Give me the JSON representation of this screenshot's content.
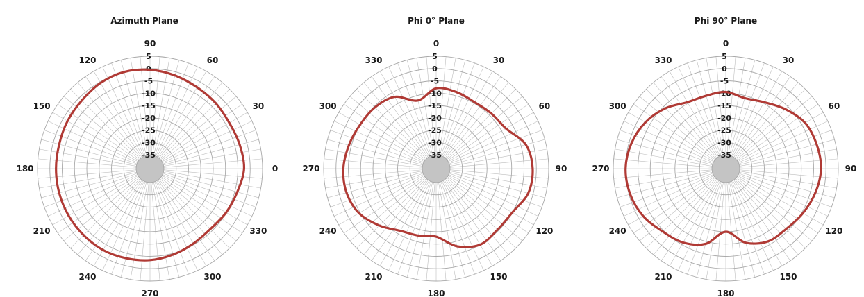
{
  "page": {
    "background": "#ffffff"
  },
  "style": {
    "trace_color": "#b03a35",
    "grid_color": "#a8a8a8",
    "spoke_color": "#bdbdbd",
    "label_color": "#1a1a1a"
  },
  "chart_data": [
    {
      "type": "polar-line",
      "title": "Azimuth Plane",
      "angle_direction": "counterclockwise",
      "zero_angle_position": "right",
      "angle_labels": [
        "0",
        "30",
        "60",
        "90",
        "120",
        "150",
        "180",
        "210",
        "240",
        "270",
        "300",
        "330"
      ],
      "radial_range": [
        -35,
        5
      ],
      "radial_ticks": [
        "5",
        "0",
        "-5",
        "-10",
        "-15",
        "-20",
        "-25",
        "-30",
        "-35"
      ],
      "series": [
        {
          "angles_deg": [
            0,
            15,
            30,
            45,
            60,
            75,
            90,
            105,
            120,
            135,
            150,
            165,
            180,
            195,
            210,
            225,
            240,
            255,
            270,
            285,
            300,
            315,
            330,
            345
          ],
          "values_db": [
            -2.5,
            -3,
            -3.5,
            -3,
            -2.5,
            -1.5,
            -0.5,
            0,
            -0.5,
            -1.5,
            -2,
            -2.5,
            -2.5,
            -2.5,
            -2.5,
            -2.5,
            -2.5,
            -3,
            -3.5,
            -4.5,
            -5.5,
            -6,
            -5,
            -4
          ]
        }
      ]
    },
    {
      "type": "polar-line",
      "title": "Phi 0° Plane",
      "angle_direction": "clockwise",
      "zero_angle_position": "top",
      "angle_labels": [
        "0",
        "30",
        "60",
        "90",
        "120",
        "150",
        "180",
        "210",
        "240",
        "270",
        "300",
        "330"
      ],
      "radial_range": [
        -35,
        5
      ],
      "radial_ticks": [
        "5",
        "0",
        "-5",
        "-10",
        "-15",
        "-20",
        "-25",
        "-30",
        "-35"
      ],
      "series": [
        {
          "angles_deg": [
            0,
            15,
            30,
            45,
            60,
            75,
            90,
            105,
            120,
            135,
            150,
            165,
            180,
            195,
            210,
            225,
            240,
            255,
            270,
            285,
            300,
            315,
            330,
            345
          ],
          "values_db": [
            -8,
            -8.5,
            -9.5,
            -9,
            -8,
            -3,
            -1.5,
            -2,
            -5,
            -5.5,
            -5,
            -8,
            -13,
            -12.5,
            -11.5,
            -8,
            -4.5,
            -3,
            -3,
            -4,
            -5,
            -5.5,
            -7,
            -12
          ]
        }
      ]
    },
    {
      "type": "polar-line",
      "title": "Phi 90° Plane",
      "angle_direction": "clockwise",
      "zero_angle_position": "top",
      "angle_labels": [
        "0",
        "30",
        "60",
        "90",
        "120",
        "150",
        "180",
        "210",
        "240",
        "270",
        "300",
        "330"
      ],
      "radial_range": [
        -35,
        5
      ],
      "radial_ticks": [
        "5",
        "0",
        "-5",
        "-10",
        "-15",
        "-20",
        "-25",
        "-30",
        "-35"
      ],
      "series": [
        {
          "angles_deg": [
            0,
            15,
            30,
            45,
            60,
            75,
            90,
            105,
            120,
            135,
            150,
            165,
            180,
            195,
            210,
            225,
            240,
            255,
            270,
            285,
            300,
            315,
            330,
            345
          ],
          "values_db": [
            -9.5,
            -11,
            -9.5,
            -6.5,
            -3.5,
            -2.5,
            -2,
            -3,
            -4.5,
            -6,
            -6.5,
            -9.5,
            -15,
            -9,
            -6,
            -4.5,
            -2,
            -0.5,
            0,
            -1,
            -3,
            -6,
            -9.5,
            -10
          ]
        }
      ]
    }
  ]
}
